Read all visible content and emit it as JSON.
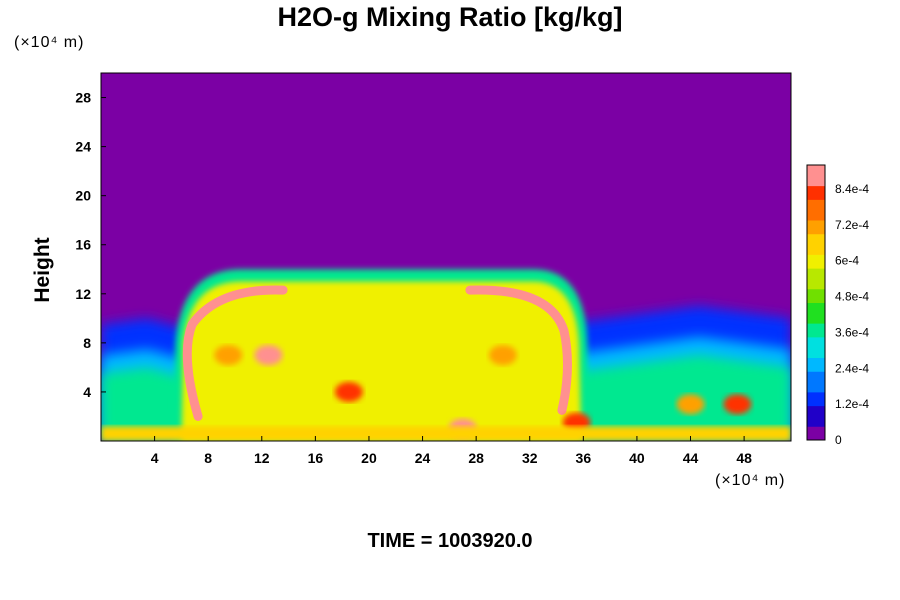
{
  "chart_data": {
    "type": "heatmap",
    "title": "H2O-g Mixing Ratio [kg/kg]",
    "ylabel": "Height",
    "xlabel": "",
    "y_unit": "(×10⁴ m)",
    "x_unit": "(×10⁴ m)",
    "x_ticks": [
      4,
      8,
      12,
      16,
      20,
      24,
      28,
      32,
      36,
      40,
      44,
      48
    ],
    "y_ticks": [
      4,
      8,
      12,
      16,
      20,
      24,
      28
    ],
    "xlim": [
      0,
      51.5
    ],
    "ylim": [
      0,
      30
    ],
    "colorbar": {
      "labels": [
        "0",
        "1.2e-4",
        "2.4e-4",
        "3.6e-4",
        "4.8e-4",
        "6e-4",
        "7.2e-4",
        "8.4e-4"
      ],
      "label_values": [
        0,
        0.00012,
        0.00024,
        0.00036,
        0.00048,
        0.0006,
        0.00072,
        0.00084
      ],
      "range": [
        0,
        0.00092
      ]
    },
    "background_value": 0,
    "field_regions": [
      {
        "name": "lower-moist-layer",
        "x": [
          0,
          51.5
        ],
        "y_top": [
          5.5,
          6,
          5,
          4,
          4.5,
          5,
          6,
          6.5,
          7,
          6,
          5.5,
          6,
          6.5,
          7,
          6.5,
          6
        ],
        "value": 0.0004
      },
      {
        "name": "anvil-core",
        "x": [
          6,
          36
        ],
        "y": [
          0,
          14
        ],
        "value": 0.0006
      },
      {
        "name": "core-edge",
        "x": [
          6.5,
          35
        ],
        "y": [
          8,
          12.5
        ],
        "value": 0.0009
      }
    ]
  },
  "footer": {
    "time_label": "TIME = 1003920.0"
  }
}
